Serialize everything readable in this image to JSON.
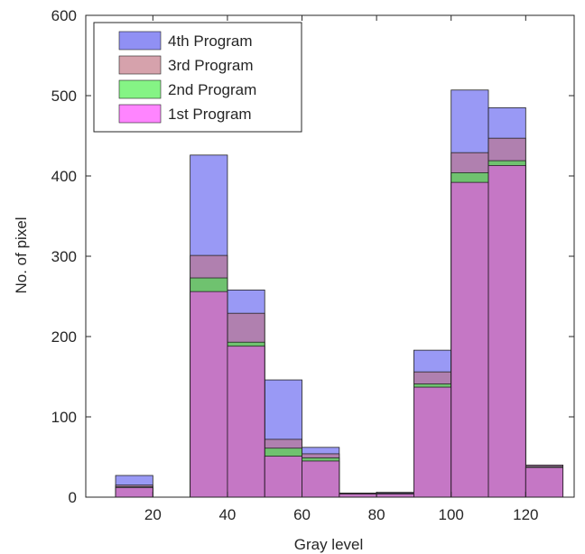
{
  "chart_data": {
    "type": "bar",
    "stacked_overlay": true,
    "xlabel": "Gray level",
    "ylabel": "No. of pixel",
    "xlim": [
      2,
      133
    ],
    "ylim": [
      0,
      600
    ],
    "xticks": [
      20,
      40,
      60,
      80,
      100,
      120
    ],
    "yticks": [
      0,
      100,
      200,
      300,
      400,
      500,
      600
    ],
    "grid": false,
    "legend_position": "top-left",
    "bin_edges": [
      10,
      20,
      30,
      40,
      50,
      60,
      70,
      80,
      90,
      100,
      110,
      120,
      130
    ],
    "series": [
      {
        "name": "4th Program",
        "color": "#5555ee",
        "values": [
          27,
          0,
          426,
          258,
          146,
          62,
          5,
          6,
          183,
          507,
          485,
          40
        ]
      },
      {
        "name": "3rd Program",
        "color": "#c07080",
        "values": [
          15,
          0,
          301,
          229,
          72,
          54,
          5,
          5,
          156,
          429,
          447,
          40
        ]
      },
      {
        "name": "2nd Program",
        "color": "#44ee44",
        "values": [
          13,
          0,
          273,
          193,
          61,
          49,
          4,
          4,
          141,
          404,
          419,
          38
        ]
      },
      {
        "name": "1st Program",
        "color": "#ff44ff",
        "values": [
          12,
          0,
          256,
          188,
          51,
          45,
          4,
          4,
          137,
          392,
          413,
          37
        ]
      }
    ]
  }
}
